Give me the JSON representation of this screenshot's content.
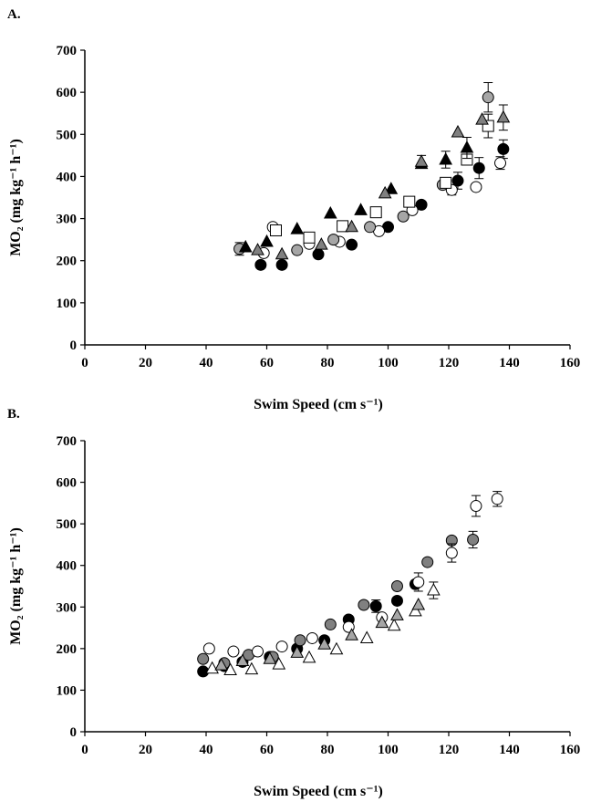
{
  "chart_data": [
    {
      "panel": "A.",
      "type": "scatter",
      "xlabel": "Swim Speed (cm s⁻¹)",
      "ylabel": "MO₂ (mg kg⁻¹ h⁻¹)",
      "xlim": [
        0,
        160
      ],
      "ylim": [
        0,
        700
      ],
      "xticks": [
        "0",
        "20",
        "40",
        "60",
        "80",
        "100",
        "120",
        "140",
        "160"
      ],
      "yticks": [
        "0",
        "100",
        "200",
        "300",
        "400",
        "500",
        "600",
        "700"
      ],
      "grid": false,
      "series": [
        {
          "marker": "circle",
          "fill": "#000000",
          "x": [
            58,
            65,
            77,
            88,
            100,
            111,
            123,
            130,
            138
          ],
          "y": [
            190,
            190,
            215,
            238,
            280,
            333,
            390,
            420,
            465
          ],
          "err": [
            0,
            0,
            0,
            0,
            0,
            0,
            20,
            25,
            22
          ]
        },
        {
          "marker": "circle",
          "fill": "#ffffff",
          "x": [
            59,
            62,
            74,
            84,
            97,
            108,
            121,
            129,
            137
          ],
          "y": [
            218,
            280,
            240,
            245,
            270,
            320,
            368,
            375,
            432
          ],
          "err": [
            0,
            0,
            0,
            0,
            0,
            0,
            12,
            0,
            15
          ]
        },
        {
          "marker": "circle",
          "fill": "#a6a6a6",
          "x": [
            51,
            70,
            82,
            94,
            105,
            118,
            133
          ],
          "y": [
            228,
            225,
            250,
            280,
            305,
            380,
            588
          ],
          "err": [
            15,
            0,
            0,
            0,
            0,
            0,
            35
          ]
        },
        {
          "marker": "square",
          "fill": "#ffffff",
          "x": [
            63,
            74,
            85,
            96,
            107,
            119,
            126,
            133
          ],
          "y": [
            272,
            255,
            282,
            315,
            340,
            385,
            440,
            520
          ],
          "err": [
            0,
            0,
            0,
            0,
            0,
            0,
            0,
            28
          ]
        },
        {
          "marker": "triangle",
          "fill": "#000000",
          "x": [
            53,
            60,
            70,
            81,
            91,
            101,
            111,
            119,
            126
          ],
          "y": [
            232,
            245,
            275,
            312,
            320,
            370,
            430,
            440,
            468
          ],
          "err": [
            0,
            0,
            0,
            0,
            0,
            0,
            0,
            20,
            25
          ]
        },
        {
          "marker": "triangle",
          "fill": "#808080",
          "x": [
            57,
            65,
            78,
            88,
            99,
            111,
            123,
            131,
            138
          ],
          "y": [
            225,
            215,
            238,
            280,
            360,
            435,
            505,
            535,
            540
          ],
          "err": [
            0,
            0,
            0,
            0,
            0,
            15,
            0,
            0,
            30
          ]
        }
      ]
    },
    {
      "panel": "B.",
      "type": "scatter",
      "xlabel": "Swim Speed (cm s⁻¹)",
      "ylabel": "MO₂ (mg kg⁻¹ h⁻¹)",
      "xlim": [
        0,
        160
      ],
      "ylim": [
        0,
        700
      ],
      "xticks": [
        "0",
        "20",
        "40",
        "60",
        "80",
        "100",
        "120",
        "140",
        "160"
      ],
      "yticks": [
        "0",
        "100",
        "200",
        "300",
        "400",
        "500",
        "600",
        "700"
      ],
      "grid": false,
      "series": [
        {
          "marker": "circle",
          "fill": "#000000",
          "x": [
            39,
            46,
            52,
            61,
            70,
            79,
            87,
            96,
            103,
            109
          ],
          "y": [
            145,
            158,
            168,
            180,
            200,
            220,
            270,
            302,
            315,
            355
          ],
          "err": [
            0,
            0,
            0,
            0,
            0,
            0,
            0,
            15,
            0,
            0
          ]
        },
        {
          "marker": "circle",
          "fill": "#808080",
          "x": [
            39,
            46,
            54,
            62,
            71,
            81,
            92,
            103,
            113,
            121,
            128
          ],
          "y": [
            175,
            165,
            185,
            180,
            220,
            258,
            305,
            350,
            408,
            460,
            462
          ],
          "err": [
            0,
            0,
            0,
            0,
            0,
            0,
            0,
            0,
            0,
            0,
            20
          ]
        },
        {
          "marker": "circle",
          "fill": "#ffffff",
          "x": [
            41,
            49,
            57,
            65,
            75,
            87,
            98,
            110,
            121,
            129,
            136
          ],
          "y": [
            200,
            193,
            193,
            205,
            225,
            252,
            275,
            360,
            430,
            543,
            560
          ],
          "err": [
            0,
            0,
            0,
            0,
            0,
            0,
            0,
            22,
            22,
            25,
            18
          ]
        },
        {
          "marker": "triangle",
          "fill": "#ffffff",
          "x": [
            42,
            48,
            55,
            64,
            74,
            83,
            93,
            102,
            109,
            115
          ],
          "y": [
            152,
            148,
            150,
            162,
            178,
            198,
            225,
            255,
            290,
            340
          ],
          "err": [
            0,
            0,
            0,
            0,
            0,
            0,
            0,
            0,
            0,
            20
          ]
        },
        {
          "marker": "triangle",
          "fill": "#a6a6a6",
          "x": [
            45,
            52,
            61,
            70,
            79,
            88,
            98,
            103,
            110
          ],
          "y": [
            160,
            170,
            175,
            190,
            210,
            232,
            262,
            280,
            305
          ],
          "err": [
            0,
            0,
            0,
            0,
            0,
            0,
            0,
            0,
            0
          ]
        }
      ]
    }
  ]
}
